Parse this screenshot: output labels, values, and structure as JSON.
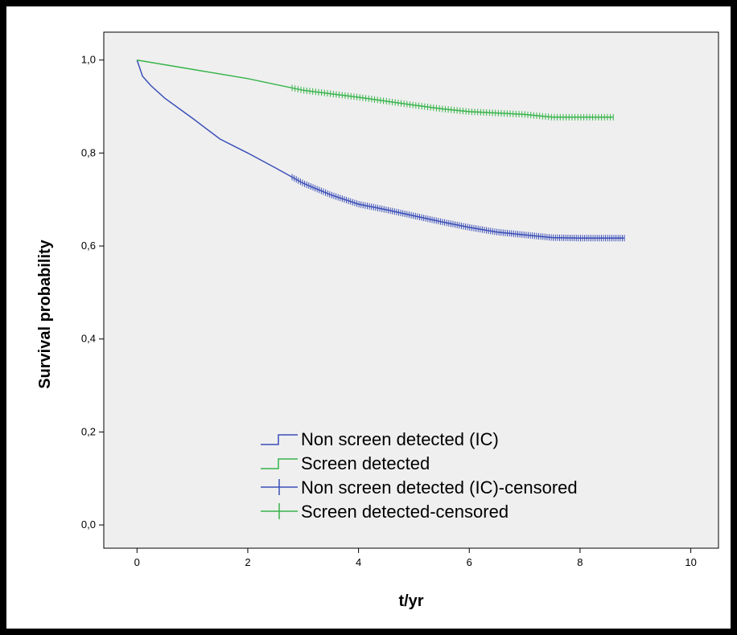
{
  "chart_data": {
    "type": "line",
    "title": "",
    "xlabel": "t/yr",
    "ylabel": "Survival probability",
    "xlim": [
      -0.6,
      10.5
    ],
    "ylim": [
      -0.05,
      1.06
    ],
    "x_ticks": [
      0,
      2,
      4,
      6,
      8,
      10
    ],
    "x_tick_labels": [
      "0",
      "2",
      "4",
      "6",
      "8",
      "10"
    ],
    "y_ticks": [
      0.0,
      0.2,
      0.4,
      0.6,
      0.8,
      1.0
    ],
    "y_tick_labels": [
      "0,0",
      "0,2",
      "0,4",
      "0,6",
      "0,8",
      "1,0"
    ],
    "grid": false,
    "legend_position": "bottom-center",
    "background_color": "#efefef",
    "series": [
      {
        "name": "Non screen detected (IC)",
        "color": "#3b4fb8",
        "x": [
          0,
          0.1,
          0.25,
          0.5,
          1,
          1.5,
          2,
          2.5,
          3,
          3.5,
          4,
          4.5,
          5,
          5.5,
          6,
          6.5,
          7,
          7.5,
          8,
          8.5,
          8.8
        ],
        "y": [
          1.0,
          0.965,
          0.945,
          0.918,
          0.875,
          0.83,
          0.8,
          0.768,
          0.735,
          0.71,
          0.69,
          0.678,
          0.665,
          0.652,
          0.64,
          0.63,
          0.624,
          0.618,
          0.617,
          0.617,
          0.617
        ]
      },
      {
        "name": "Screen detected",
        "color": "#37b44a",
        "x": [
          0,
          0.5,
          1,
          2,
          3,
          4,
          5,
          5.5,
          6,
          6.5,
          7,
          7.5,
          8,
          8.5,
          8.6
        ],
        "y": [
          1.0,
          0.99,
          0.98,
          0.96,
          0.935,
          0.92,
          0.903,
          0.895,
          0.889,
          0.886,
          0.883,
          0.877,
          0.877,
          0.877,
          0.877
        ]
      }
    ],
    "censored_series": [
      {
        "name": "Non screen detected (IC)-censored",
        "color": "#3b4fb8",
        "x_range": [
          2.8,
          8.8
        ],
        "count": 160
      },
      {
        "name": "Screen detected-censored",
        "color": "#37b44a",
        "x_range": [
          2.8,
          8.6
        ],
        "count": 110
      }
    ]
  }
}
